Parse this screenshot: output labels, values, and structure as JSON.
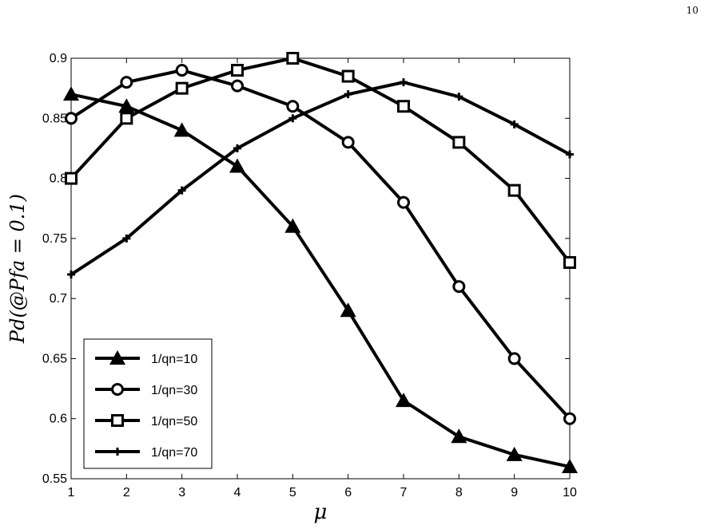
{
  "page_number": "10",
  "chart_data": {
    "type": "line",
    "x": [
      1,
      2,
      3,
      4,
      5,
      6,
      7,
      8,
      9,
      10
    ],
    "xlim": [
      1,
      10
    ],
    "ylim": [
      0.55,
      0.9
    ],
    "xticks": [
      "1",
      "2",
      "3",
      "4",
      "5",
      "6",
      "7",
      "8",
      "9",
      "10"
    ],
    "yticks": [
      "0.55",
      "0.6",
      "0.65",
      "0.7",
      "0.75",
      "0.8",
      "0.85",
      "0.9"
    ],
    "xlabel": "μ",
    "ylabel": "Pd(@Pfa = 0.1)",
    "legend_position": "bottom-left",
    "grid": false,
    "series": [
      {
        "name": "1/qn=10",
        "marker": "triangle",
        "values": [
          0.87,
          0.86,
          0.84,
          0.81,
          0.76,
          0.69,
          0.615,
          0.585,
          0.57,
          0.56
        ]
      },
      {
        "name": "1/qn=30",
        "marker": "circle",
        "values": [
          0.85,
          0.88,
          0.89,
          0.877,
          0.86,
          0.83,
          0.78,
          0.71,
          0.65,
          0.6
        ]
      },
      {
        "name": "1/qn=50",
        "marker": "square",
        "values": [
          0.8,
          0.85,
          0.875,
          0.89,
          0.9,
          0.885,
          0.86,
          0.83,
          0.79,
          0.73
        ]
      },
      {
        "name": "1/qn=70",
        "marker": "plus",
        "values": [
          0.72,
          0.75,
          0.79,
          0.825,
          0.85,
          0.87,
          0.88,
          0.868,
          0.845,
          0.82
        ]
      }
    ]
  }
}
